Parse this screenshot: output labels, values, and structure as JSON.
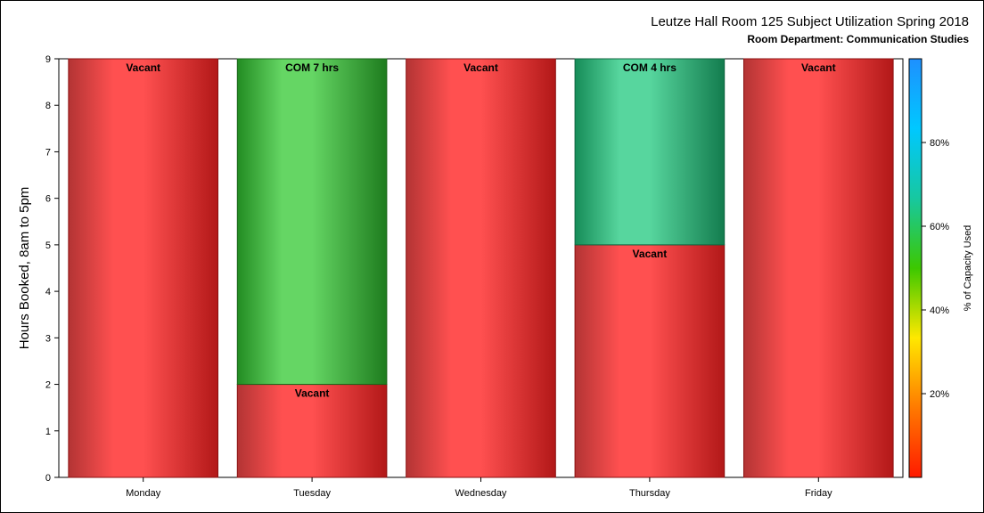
{
  "chart_data": {
    "type": "bar",
    "stacked": true,
    "title": "Leutze Hall Room 125 Subject Utilization Spring 2018",
    "subtitle": "Room Department:  Communication Studies",
    "ylabel": "Hours Booked, 8am to 5pm",
    "xlabel": "",
    "ylim": [
      0,
      9
    ],
    "yticks": [
      "0",
      "1",
      "2",
      "3",
      "4",
      "5",
      "6",
      "7",
      "8",
      "9"
    ],
    "categories": [
      "Monday",
      "Tuesday",
      "Wednesday",
      "Thursday",
      "Friday"
    ],
    "stacks": [
      {
        "category": "Monday",
        "segments": [
          {
            "label": "Vacant",
            "value": 9,
            "capacity_pct": 0
          }
        ]
      },
      {
        "category": "Tuesday",
        "segments": [
          {
            "label": "Vacant",
            "value": 2,
            "capacity_pct": 0
          },
          {
            "label": "COM 7 hrs",
            "value": 7,
            "capacity_pct": 55
          }
        ]
      },
      {
        "category": "Wednesday",
        "segments": [
          {
            "label": "Vacant",
            "value": 9,
            "capacity_pct": 0
          }
        ]
      },
      {
        "category": "Thursday",
        "segments": [
          {
            "label": "Vacant",
            "value": 5,
            "capacity_pct": 0
          },
          {
            "label": "COM 4 hrs",
            "value": 4,
            "capacity_pct": 63
          }
        ]
      },
      {
        "category": "Friday",
        "segments": [
          {
            "label": "Vacant",
            "value": 9,
            "capacity_pct": 0
          }
        ]
      }
    ],
    "grid": false,
    "colorbar": {
      "title": "% of Capacity Used",
      "range": [
        0,
        100
      ],
      "ticks": [
        "20%",
        "40%",
        "60%",
        "80%"
      ],
      "tick_values": [
        20,
        40,
        60,
        80
      ],
      "colors": [
        "#ff1a00",
        "#ff7a00",
        "#ffe800",
        "#3cc800",
        "#17c8a0",
        "#00c8ff",
        "#1e90ff"
      ]
    }
  }
}
